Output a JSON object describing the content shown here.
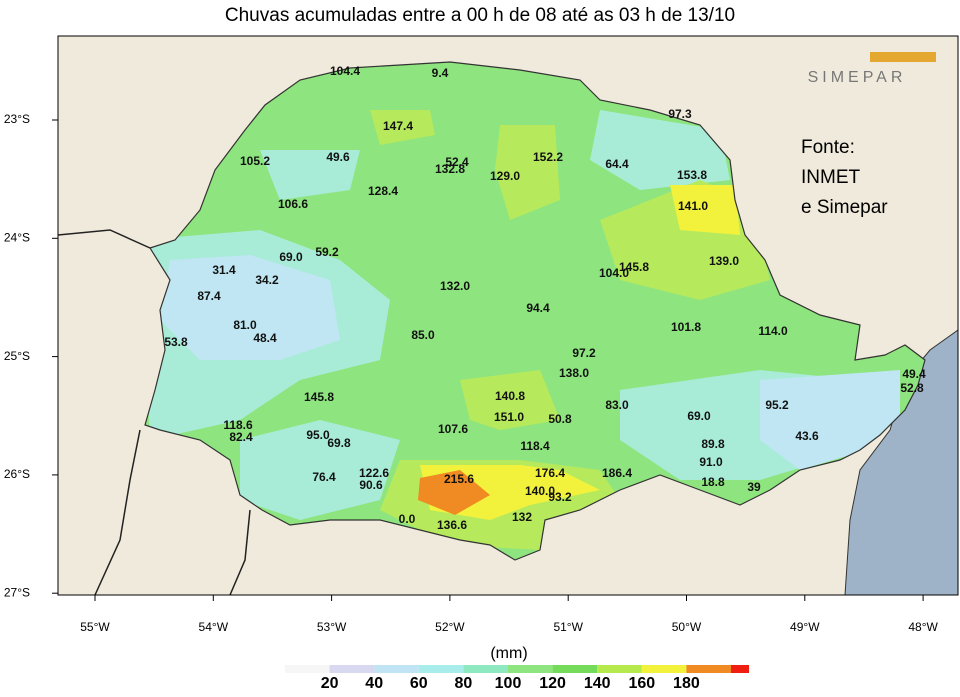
{
  "title": "Chuvas acumuladas entre a 00 h de 08 até as 03 h de 13/10",
  "logo": "SIMEPAR",
  "source": [
    "Fonte:",
    "INMET",
    "e Simepar"
  ],
  "lon_labels": [
    "55°W",
    "54°W",
    "53°W",
    "52°W",
    "51°W",
    "50°W",
    "49°W",
    "48°W"
  ],
  "lat_labels": [
    "23°S",
    "24°S",
    "25°S",
    "26°S",
    "27°S"
  ],
  "stations": [
    "104.4",
    "9.4",
    "147.4",
    "97.3",
    "105.2",
    "49.6",
    "52.4",
    "132.8",
    "152.2",
    "64.4",
    "129.0",
    "153.8",
    "128.4",
    "106.6",
    "141.0",
    "69.0",
    "59.2",
    "145.8",
    "139.0",
    "31.4",
    "34.2",
    "104.0",
    "87.4",
    "132.0",
    "94.4",
    "81.0",
    "48.4",
    "101.8",
    "114.0",
    "53.8",
    "85.0",
    "97.2",
    "138.0",
    "49.4",
    "52.8",
    "145.8",
    "140.8",
    "83.0",
    "95.2",
    "151.0",
    "50.8",
    "69.0",
    "118.6",
    "82.4",
    "107.6",
    "95.0",
    "69.8",
    "43.6",
    "89.8",
    "118.4",
    "91.0",
    "76.4",
    "122.6",
    "215.6",
    "176.4",
    "186.4",
    "90.6",
    "140.0",
    "18.8",
    "93.2",
    "39",
    "0.0",
    "136.6",
    "132"
  ],
  "legend": {
    "unit": "(mm)",
    "ticks": [
      "20",
      "40",
      "60",
      "80",
      "100",
      "120",
      "140",
      "160",
      "180"
    ]
  }
}
